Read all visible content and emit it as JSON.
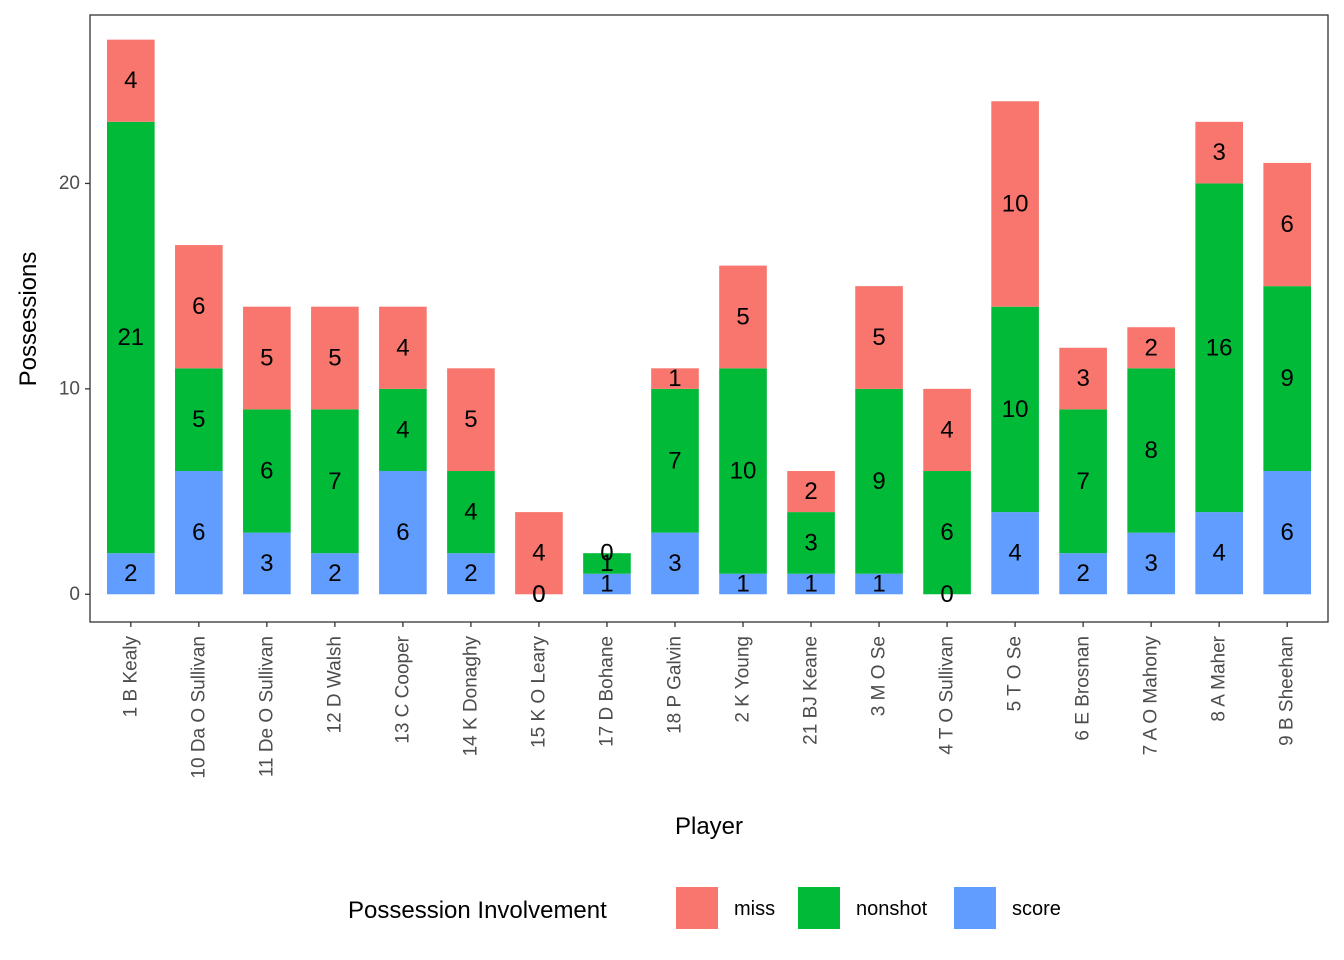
{
  "chart_data": {
    "type": "bar",
    "stacked": true,
    "title": "",
    "xlabel": "Player",
    "ylabel": "Possessions",
    "ylim": [
      -1.35,
      28.2
    ],
    "yticks": [
      0,
      10,
      20
    ],
    "grid": false,
    "legend_position": "bottom",
    "legend_title": "Possession Involvement",
    "categories": [
      "1 B Kealy",
      "10 Da O Sullivan",
      "11 De O Sullivan",
      "12 D Walsh",
      "13 C Cooper",
      "14 K Donaghy",
      "15 K O Leary",
      "17 D Bohane",
      "18 P Galvin",
      "2 K Young",
      "21 BJ Keane",
      "3 M O Se",
      "4 T O Sullivan",
      "5 T O Se",
      "6 E Brosnan",
      "7 A O Mahony",
      "8 A Maher",
      "9 B Sheehan"
    ],
    "series": [
      {
        "name": "score",
        "color": "#619CFF",
        "values": [
          2,
          6,
          3,
          2,
          6,
          2,
          0,
          1,
          3,
          1,
          1,
          1,
          0,
          4,
          2,
          3,
          4,
          6
        ]
      },
      {
        "name": "nonshot",
        "color": "#00BA38",
        "values": [
          21,
          5,
          6,
          7,
          4,
          4,
          0,
          1,
          7,
          10,
          3,
          9,
          6,
          10,
          7,
          8,
          16,
          9
        ]
      },
      {
        "name": "miss",
        "color": "#F8766D",
        "values": [
          4,
          6,
          5,
          5,
          4,
          5,
          4,
          0,
          1,
          5,
          2,
          5,
          4,
          10,
          3,
          2,
          3,
          6
        ]
      }
    ],
    "legend_order": [
      "miss",
      "nonshot",
      "score"
    ]
  }
}
